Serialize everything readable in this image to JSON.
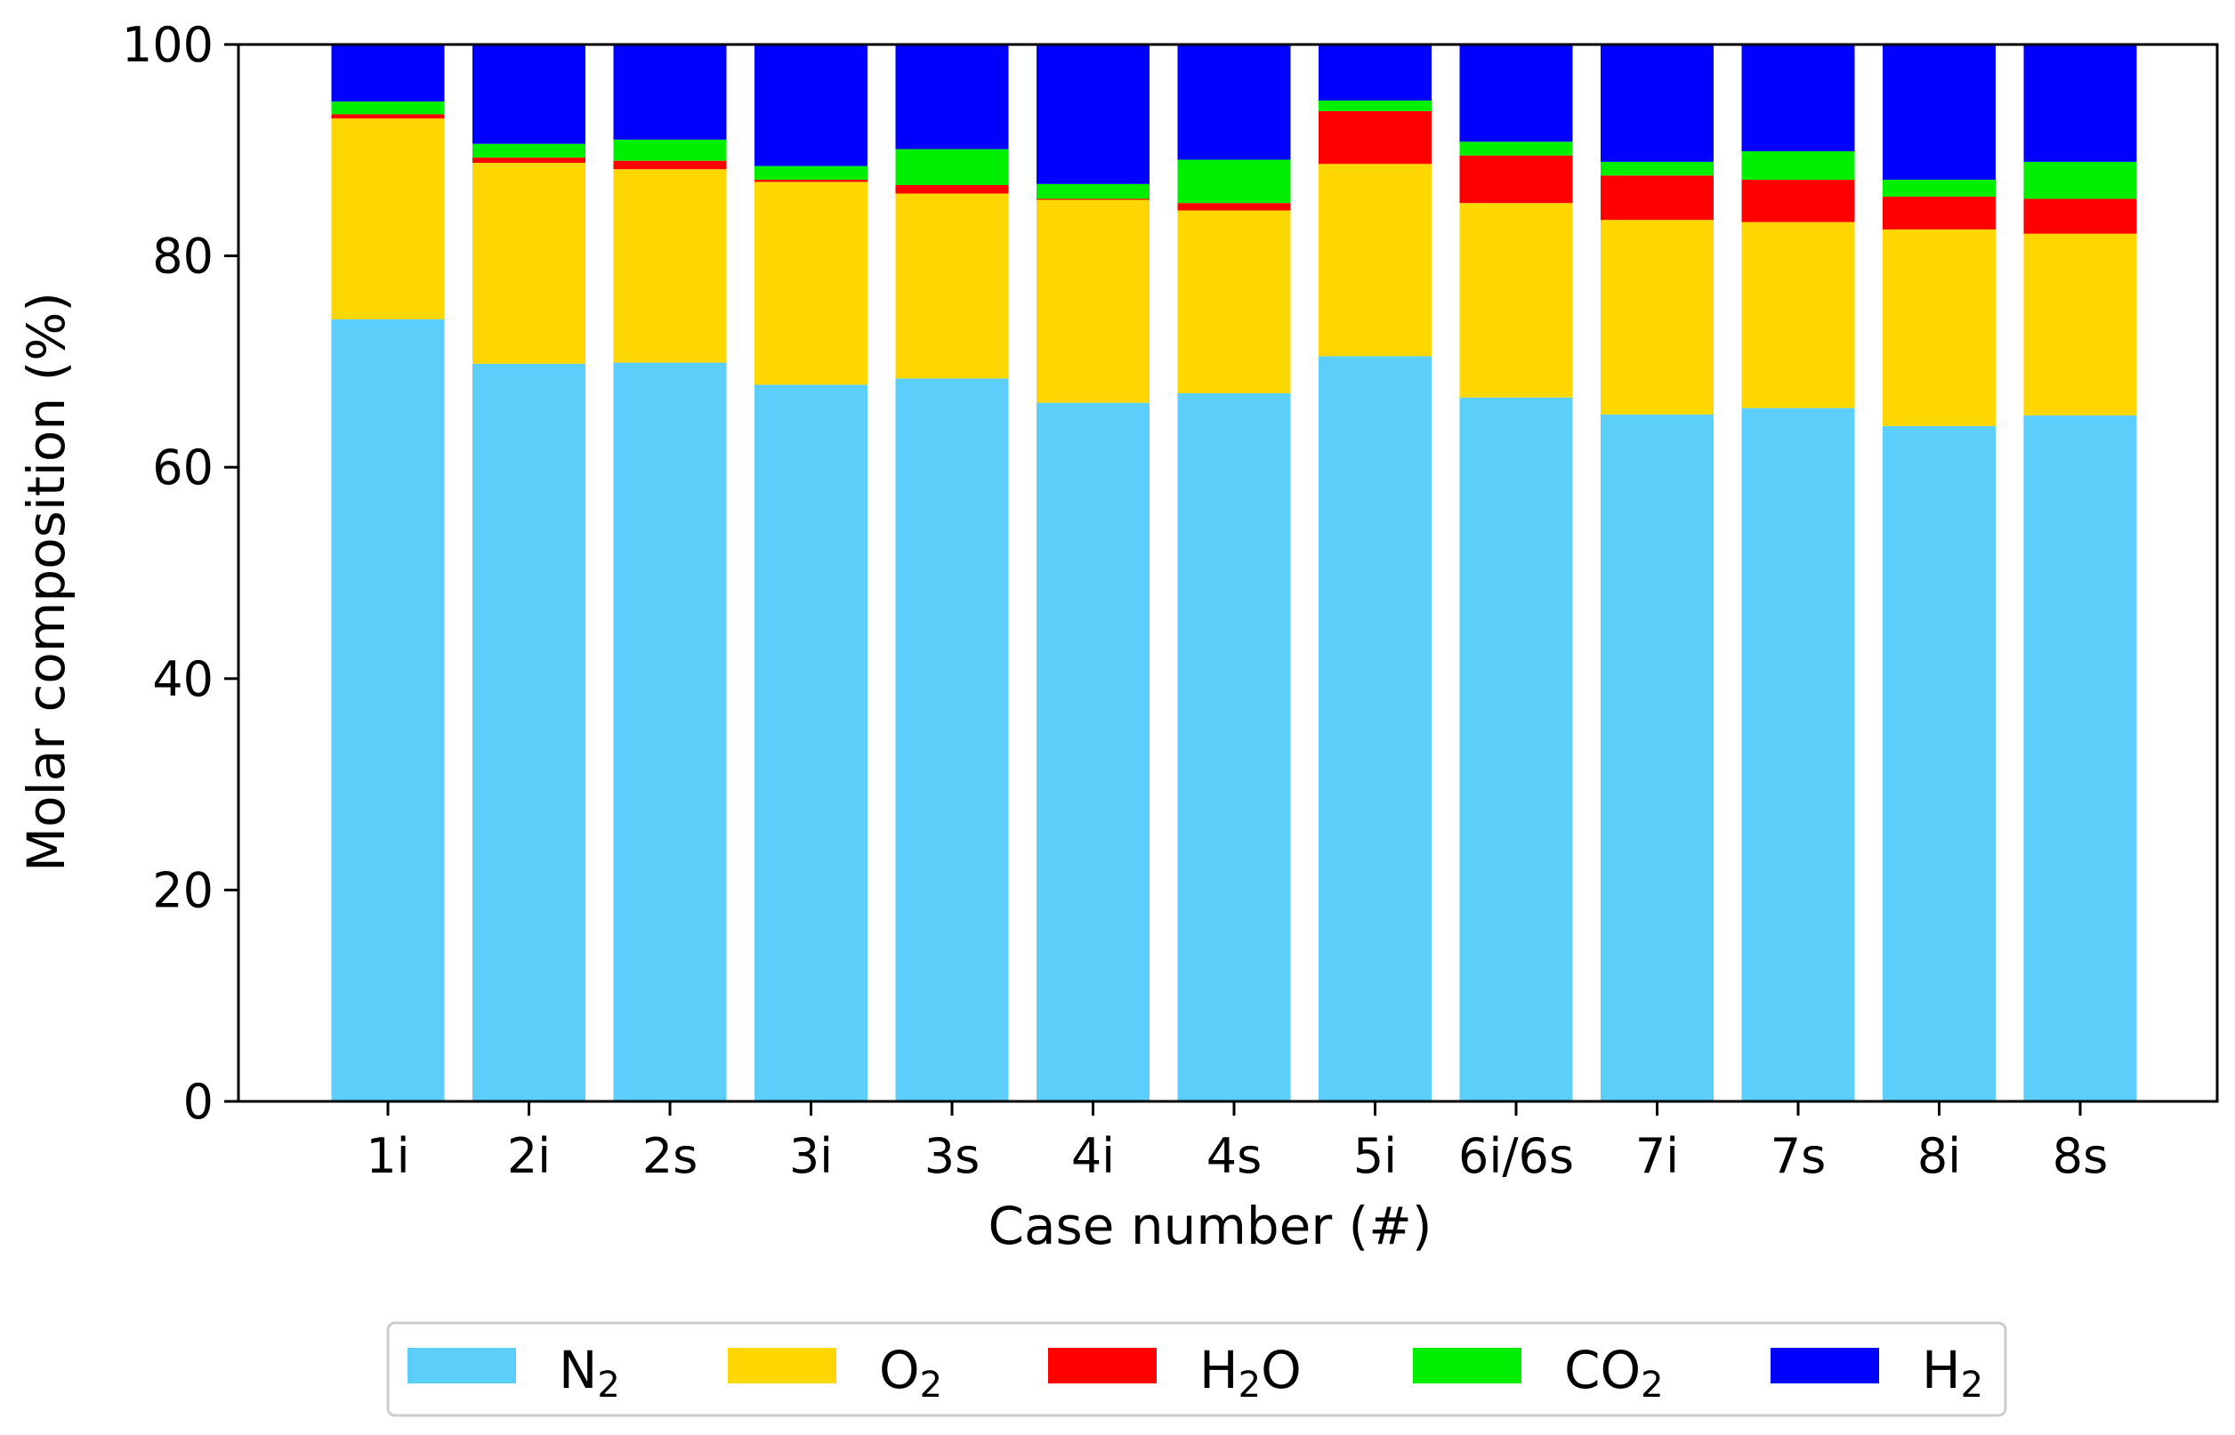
{
  "chart_data": {
    "type": "bar",
    "stacked": true,
    "title": "",
    "xlabel": "Case number (#)",
    "ylabel": "Molar composition (%)",
    "ylim": [
      0,
      100
    ],
    "yticks": [
      "0",
      "20",
      "40",
      "60",
      "80",
      "100"
    ],
    "categories": [
      "1i",
      "2i",
      "2s",
      "3i",
      "3s",
      "4i",
      "4s",
      "5i",
      "6i/6s",
      "7i",
      "7s",
      "8i",
      "8s"
    ],
    "series": [
      {
        "name": "N2",
        "label_main": "N",
        "label_sub": "2",
        "label_tail": "",
        "color": "#5bcefa",
        "values": [
          74.0,
          69.8,
          69.9,
          67.8,
          68.4,
          66.1,
          67.0,
          70.5,
          66.6,
          65.0,
          65.6,
          63.9,
          64.9
        ]
      },
      {
        "name": "O2",
        "label_main": "O",
        "label_sub": "2",
        "label_tail": "",
        "color": "#ffd700",
        "values": [
          19.0,
          19.0,
          18.3,
          19.2,
          17.5,
          19.2,
          17.3,
          18.2,
          18.4,
          18.4,
          17.6,
          18.6,
          17.2
        ]
      },
      {
        "name": "H2O",
        "label_main": "H",
        "label_sub": "2",
        "label_tail": "O",
        "color": "#ff0000",
        "values": [
          0.4,
          0.5,
          0.8,
          0.2,
          0.8,
          0.1,
          0.7,
          5.0,
          4.5,
          4.2,
          4.0,
          3.1,
          3.3
        ]
      },
      {
        "name": "CO2",
        "label_main": "CO",
        "label_sub": "2",
        "label_tail": "",
        "color": "#00ee00",
        "values": [
          1.2,
          1.3,
          2.0,
          1.3,
          3.4,
          1.4,
          4.1,
          1.0,
          1.3,
          1.3,
          2.7,
          1.6,
          3.5
        ]
      },
      {
        "name": "H2",
        "label_main": "H",
        "label_sub": "2",
        "label_tail": "",
        "color": "#0000ff",
        "values": [
          5.4,
          9.4,
          9.0,
          11.5,
          9.9,
          13.2,
          10.9,
          5.3,
          9.2,
          11.1,
          10.1,
          12.8,
          11.1
        ]
      }
    ],
    "legend_position": "bottom-center",
    "grid": false
  }
}
